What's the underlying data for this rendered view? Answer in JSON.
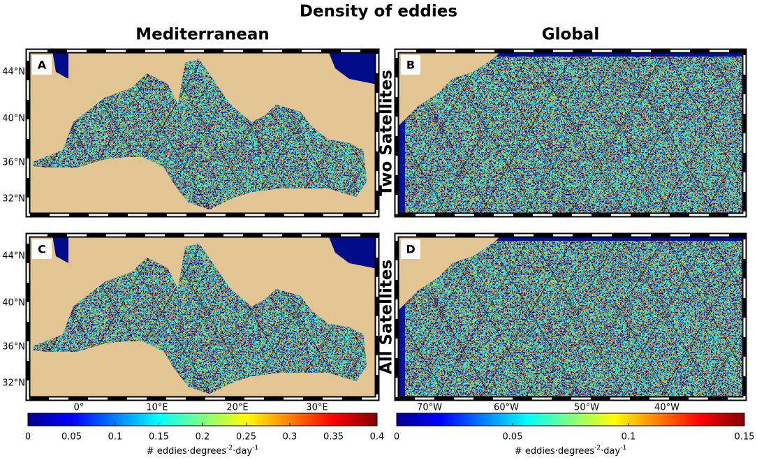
{
  "title": "Density of eddies",
  "columns": [
    "Mediterranean",
    "Global"
  ],
  "rows": [
    "Two Satellites",
    "All Satellites"
  ],
  "panels": [
    {
      "label": "A",
      "lat_ticks": [
        "44°N",
        "40°N",
        "36°N",
        "32°N"
      ]
    },
    {
      "label": "B"
    },
    {
      "label": "C",
      "lat_ticks": [
        "44°N",
        "40°N",
        "36°N",
        "32°N"
      ]
    },
    {
      "label": "D"
    }
  ],
  "lon_ticks": [
    [
      "0°",
      "10°E",
      "20°E",
      "30°E"
    ],
    [
      "70°W",
      "60°W",
      "50°W",
      "40°W"
    ]
  ],
  "colorbars": [
    {
      "lim": [
        0,
        0.4
      ],
      "ticks": [
        0,
        0.05,
        0.1,
        0.15,
        0.2,
        0.25,
        0.3,
        0.35,
        0.4
      ],
      "label": {
        "base": "# eddies·degrees",
        "exp1": "-2",
        "mid": "·day",
        "exp2": "-1"
      }
    },
    {
      "lim": [
        0,
        0.15
      ],
      "ticks": [
        0,
        0.05,
        0.1,
        0.15
      ],
      "label": {
        "base": "# eddies·degrees",
        "exp1": "-2",
        "mid": "·day",
        "exp2": "-1"
      }
    }
  ]
}
